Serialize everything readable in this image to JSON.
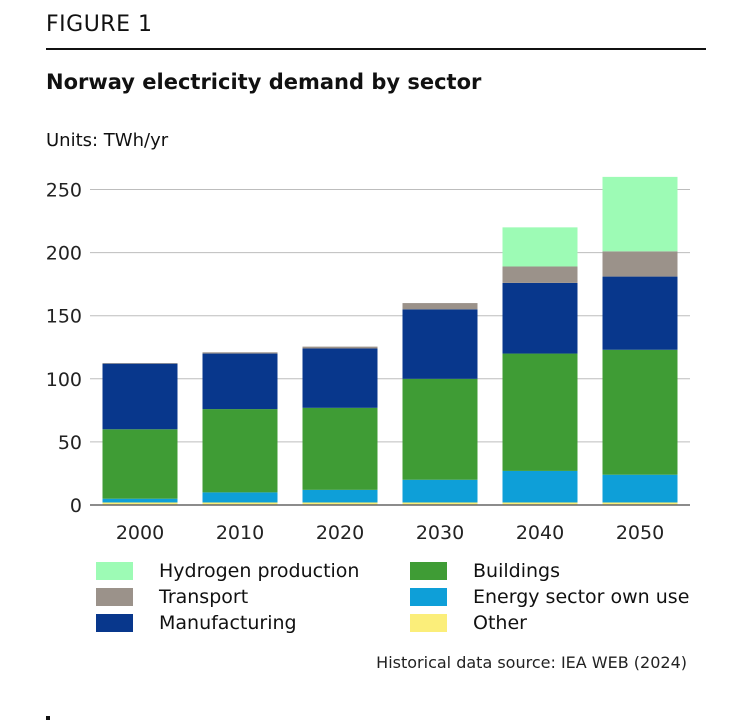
{
  "figure_label": "FIGURE 1",
  "title": "Norway electricity demand by sector",
  "units_label": "Units: TWh/yr",
  "source": "Historical data source: IEA WEB (2024)",
  "colors": {
    "Other": "#fbee7a",
    "Energy sector own use": "#0e9fd8",
    "Buildings": "#3f9c35",
    "Manufacturing": "#08378c",
    "Transport": "#9b928a",
    "Hydrogen production": "#9dfbb5",
    "grid": "#bdbdbd",
    "axis": "#666666"
  },
  "legend": [
    {
      "name": "Hydrogen production",
      "col": 0,
      "row": 0
    },
    {
      "name": "Buildings",
      "col": 1,
      "row": 0
    },
    {
      "name": "Transport",
      "col": 0,
      "row": 1
    },
    {
      "name": "Energy sector own use",
      "col": 1,
      "row": 1
    },
    {
      "name": "Manufacturing",
      "col": 0,
      "row": 2
    },
    {
      "name": "Other",
      "col": 1,
      "row": 2
    }
  ],
  "chart_data": {
    "type": "bar",
    "stacked": true,
    "categories": [
      "2000",
      "2010",
      "2020",
      "2030",
      "2040",
      "2050"
    ],
    "series": [
      {
        "name": "Other",
        "values": [
          2,
          2,
          2,
          2,
          2,
          2
        ]
      },
      {
        "name": "Energy sector own use",
        "values": [
          3,
          8,
          10,
          18,
          25,
          22
        ]
      },
      {
        "name": "Buildings",
        "values": [
          55,
          66,
          65,
          80,
          93,
          99
        ]
      },
      {
        "name": "Manufacturing",
        "values": [
          52,
          44,
          47,
          55,
          56,
          58
        ]
      },
      {
        "name": "Transport",
        "values": [
          0.5,
          1,
          1.5,
          5,
          13,
          20
        ]
      },
      {
        "name": "Hydrogen production",
        "values": [
          0,
          0,
          0,
          0,
          31,
          59
        ]
      }
    ],
    "ylabel": "TWh/yr",
    "ylim": [
      0,
      260
    ],
    "yticks": [
      0,
      50,
      100,
      150,
      200,
      250
    ],
    "grid": true,
    "legend_position": "bottom"
  }
}
